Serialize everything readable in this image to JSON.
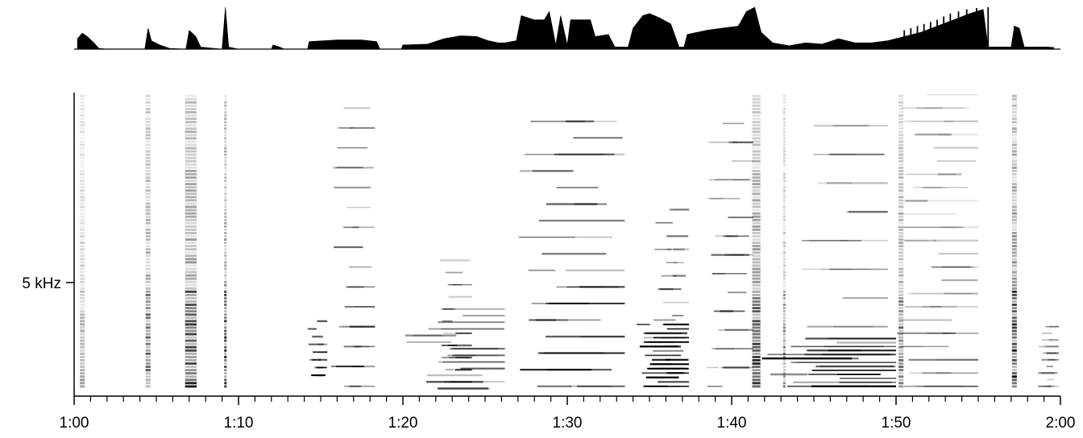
{
  "chart_data": {
    "type": "heatmap",
    "title": "",
    "xlabel": "",
    "ylabel": "",
    "x_range_seconds": [
      60,
      120
    ],
    "x_tick_labels": [
      "1:00",
      "1:10",
      "1:20",
      "1:30",
      "1:40",
      "1:50",
      "2:00"
    ],
    "x_ticks_seconds": [
      60,
      70,
      80,
      90,
      100,
      110,
      120
    ],
    "x_minor_tick_step_seconds": 1,
    "y_tick_labels": [
      "5 kHz"
    ],
    "y_ticks_khz": [
      5
    ],
    "y_range_khz": [
      0,
      13.6
    ],
    "amplitude_envelope": [
      {
        "t": 60.2,
        "a": 0.25
      },
      {
        "t": 60.5,
        "a": 0.38
      },
      {
        "t": 60.8,
        "a": 0.3
      },
      {
        "t": 61.2,
        "a": 0.15
      },
      {
        "t": 61.5,
        "a": 0.02
      },
      {
        "t": 62.0,
        "a": 0.0
      },
      {
        "t": 64.3,
        "a": 0.0
      },
      {
        "t": 64.5,
        "a": 0.5
      },
      {
        "t": 64.7,
        "a": 0.2
      },
      {
        "t": 65.2,
        "a": 0.1
      },
      {
        "t": 65.8,
        "a": 0.02
      },
      {
        "t": 66.8,
        "a": 0.0
      },
      {
        "t": 67.0,
        "a": 0.45
      },
      {
        "t": 67.4,
        "a": 0.3
      },
      {
        "t": 67.7,
        "a": 0.05
      },
      {
        "t": 69.0,
        "a": 0.0
      },
      {
        "t": 69.2,
        "a": 1.0
      },
      {
        "t": 69.4,
        "a": 0.05
      },
      {
        "t": 70.0,
        "a": 0.0
      },
      {
        "t": 72.0,
        "a": 0.0
      },
      {
        "t": 72.1,
        "a": 0.1
      },
      {
        "t": 72.5,
        "a": 0.05
      },
      {
        "t": 72.8,
        "a": 0.0
      },
      {
        "t": 74.2,
        "a": 0.0
      },
      {
        "t": 74.3,
        "a": 0.18
      },
      {
        "t": 76.0,
        "a": 0.22
      },
      {
        "t": 77.5,
        "a": 0.22
      },
      {
        "t": 78.4,
        "a": 0.18
      },
      {
        "t": 78.6,
        "a": 0.0
      },
      {
        "t": 79.9,
        "a": 0.0
      },
      {
        "t": 80.0,
        "a": 0.1
      },
      {
        "t": 81.5,
        "a": 0.12
      },
      {
        "t": 82.5,
        "a": 0.25
      },
      {
        "t": 83.5,
        "a": 0.32
      },
      {
        "t": 84.5,
        "a": 0.3
      },
      {
        "t": 85.2,
        "a": 0.2
      },
      {
        "t": 85.8,
        "a": 0.15
      },
      {
        "t": 86.2,
        "a": 0.15
      },
      {
        "t": 86.9,
        "a": 0.2
      },
      {
        "t": 87.2,
        "a": 0.8
      },
      {
        "t": 88.0,
        "a": 0.7
      },
      {
        "t": 88.6,
        "a": 0.7
      },
      {
        "t": 88.9,
        "a": 0.9
      },
      {
        "t": 89.3,
        "a": 0.1
      },
      {
        "t": 89.6,
        "a": 0.8
      },
      {
        "t": 90.0,
        "a": 0.1
      },
      {
        "t": 90.2,
        "a": 0.7
      },
      {
        "t": 91.4,
        "a": 0.7
      },
      {
        "t": 91.7,
        "a": 0.3
      },
      {
        "t": 92.5,
        "a": 0.35
      },
      {
        "t": 92.9,
        "a": 0.05
      },
      {
        "t": 93.7,
        "a": 0.05
      },
      {
        "t": 94.0,
        "a": 0.5
      },
      {
        "t": 94.6,
        "a": 0.8
      },
      {
        "t": 95.0,
        "a": 0.85
      },
      {
        "t": 95.6,
        "a": 0.75
      },
      {
        "t": 96.3,
        "a": 0.6
      },
      {
        "t": 96.8,
        "a": 0.05
      },
      {
        "t": 97.1,
        "a": 0.05
      },
      {
        "t": 97.3,
        "a": 0.35
      },
      {
        "t": 98.5,
        "a": 0.45
      },
      {
        "t": 99.4,
        "a": 0.5
      },
      {
        "t": 100.4,
        "a": 0.55
      },
      {
        "t": 100.9,
        "a": 0.9
      },
      {
        "t": 101.4,
        "a": 1.0
      },
      {
        "t": 101.8,
        "a": 0.4
      },
      {
        "t": 102.5,
        "a": 0.15
      },
      {
        "t": 103.5,
        "a": 0.08
      },
      {
        "t": 104.5,
        "a": 0.15
      },
      {
        "t": 105.5,
        "a": 0.12
      },
      {
        "t": 106.5,
        "a": 0.25
      },
      {
        "t": 107.5,
        "a": 0.15
      },
      {
        "t": 108.5,
        "a": 0.15
      },
      {
        "t": 109.5,
        "a": 0.2
      },
      {
        "t": 110.5,
        "a": 0.3
      },
      {
        "t": 111.5,
        "a": 0.4
      },
      {
        "t": 112.5,
        "a": 0.55
      },
      {
        "t": 113.5,
        "a": 0.7
      },
      {
        "t": 114.5,
        "a": 0.85
      },
      {
        "t": 115.3,
        "a": 0.95
      },
      {
        "t": 115.6,
        "a": 0.05
      },
      {
        "t": 116.0,
        "a": 0.05
      },
      {
        "t": 116.5,
        "a": 0.05
      },
      {
        "t": 117.0,
        "a": 0.05
      },
      {
        "t": 117.2,
        "a": 0.55
      },
      {
        "t": 117.5,
        "a": 0.5
      },
      {
        "t": 117.8,
        "a": 0.05
      },
      {
        "t": 118.5,
        "a": 0.05
      },
      {
        "t": 119.2,
        "a": 0.05
      },
      {
        "t": 119.6,
        "a": 0.04
      }
    ],
    "envelope_spikes": [
      {
        "t": 110.5,
        "a": 0.45
      },
      {
        "t": 110.9,
        "a": 0.5
      },
      {
        "t": 111.3,
        "a": 0.55
      },
      {
        "t": 111.7,
        "a": 0.6
      },
      {
        "t": 112.1,
        "a": 0.65
      },
      {
        "t": 112.5,
        "a": 0.7
      },
      {
        "t": 112.9,
        "a": 0.78
      },
      {
        "t": 113.3,
        "a": 0.85
      },
      {
        "t": 113.8,
        "a": 0.9
      },
      {
        "t": 114.3,
        "a": 0.95
      },
      {
        "t": 114.9,
        "a": 0.98
      },
      {
        "t": 115.6,
        "a": 1.0
      },
      {
        "t": 117.2,
        "a": 0.55
      }
    ],
    "spectrogram_vertical_bands": [
      {
        "t": 60.5,
        "f_low": 0.2,
        "f_high": 13.5,
        "intensity": 0.25,
        "width_s": 0.3
      },
      {
        "t": 64.5,
        "f_low": 0.2,
        "f_high": 13.5,
        "intensity": 0.45,
        "width_s": 0.3
      },
      {
        "t": 67.1,
        "f_low": 0.2,
        "f_high": 13.5,
        "intensity": 0.55,
        "width_s": 0.7
      },
      {
        "t": 69.2,
        "f_low": 0.2,
        "f_high": 13.5,
        "intensity": 0.6,
        "width_s": 0.15
      },
      {
        "t": 101.5,
        "f_low": 0.2,
        "f_high": 13.5,
        "intensity": 0.55,
        "width_s": 0.5
      },
      {
        "t": 103.2,
        "f_low": 0.2,
        "f_high": 13.5,
        "intensity": 0.35,
        "width_s": 0.15
      },
      {
        "t": 110.3,
        "f_low": 0.2,
        "f_high": 13.5,
        "intensity": 0.45,
        "width_s": 0.3
      },
      {
        "t": 117.2,
        "f_low": 0.2,
        "f_high": 13.5,
        "intensity": 0.6,
        "width_s": 0.3
      }
    ],
    "spectrogram_harmonic_regions": [
      {
        "t_start": 74.2,
        "t_end": 75.4,
        "f_low": 0.8,
        "f_high": 3.5,
        "spacing_khz": 0.35,
        "intensity": 0.8
      },
      {
        "t_start": 75.6,
        "t_end": 78.3,
        "f_low": 0.3,
        "f_high": 13.0,
        "spacing_khz": 0.9,
        "intensity": 0.55
      },
      {
        "t_start": 79.9,
        "t_end": 86.2,
        "f_low": 0.2,
        "f_high": 4.0,
        "spacing_khz": 0.3,
        "intensity": 0.45
      },
      {
        "t_start": 82.2,
        "t_end": 84.2,
        "f_low": 0.5,
        "f_high": 6.5,
        "spacing_khz": 0.55,
        "intensity": 0.55
      },
      {
        "t_start": 87.0,
        "t_end": 93.5,
        "f_low": 0.3,
        "f_high": 13.0,
        "spacing_khz": 0.75,
        "intensity": 0.7
      },
      {
        "t_start": 94.2,
        "t_end": 97.4,
        "f_low": 0.3,
        "f_high": 3.5,
        "spacing_khz": 0.2,
        "intensity": 0.8
      },
      {
        "t_start": 95.3,
        "t_end": 97.4,
        "f_low": 3.5,
        "f_high": 8.5,
        "spacing_khz": 0.6,
        "intensity": 0.6
      },
      {
        "t_start": 98.5,
        "t_end": 101.3,
        "f_low": 0.3,
        "f_high": 13.0,
        "spacing_khz": 0.85,
        "intensity": 0.55
      },
      {
        "t_start": 101.8,
        "t_end": 110.0,
        "f_low": 0.3,
        "f_high": 2.6,
        "spacing_khz": 0.18,
        "intensity": 0.75
      },
      {
        "t_start": 104.0,
        "t_end": 109.5,
        "f_low": 3.0,
        "f_high": 13.0,
        "spacing_khz": 1.3,
        "intensity": 0.45
      },
      {
        "t_start": 110.0,
        "t_end": 115.0,
        "f_low": 0.3,
        "f_high": 13.5,
        "spacing_khz": 0.6,
        "intensity": 0.35
      },
      {
        "t_start": 118.5,
        "t_end": 119.9,
        "f_low": 0.3,
        "f_high": 3.0,
        "spacing_khz": 0.3,
        "intensity": 0.35
      }
    ],
    "grid": false,
    "legend": "none",
    "colors": {
      "ink": "#000000",
      "background": "#ffffff"
    }
  }
}
